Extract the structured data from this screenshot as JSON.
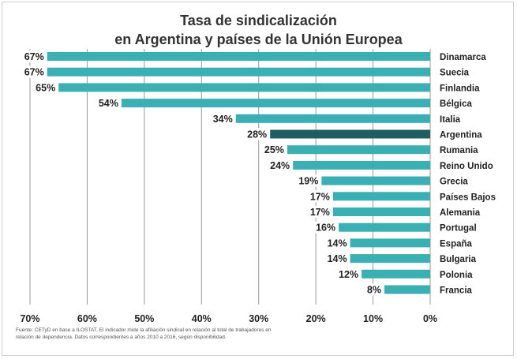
{
  "title_lines": [
    "Tasa de sindicalización",
    "en Argentina y países de la Unión Europea"
  ],
  "source_text": "Fuente: CETyD en base a ILOSTAT. El indicador mide la afiliación sindical en relación al total de trabajadores en relación de dependencia. Datos correspondientes a años 2010 a 2016, según disponibilidad.",
  "colors": {
    "bar": "#3AAFB4",
    "highlight": "#1E5E63",
    "grid": "#9a9a9a",
    "text": "#222222"
  },
  "chart_data": {
    "type": "bar",
    "orientation": "horizontal-reversed",
    "categories": [
      "Dinamarca",
      "Suecia",
      "Finlandia",
      "Bélgica",
      "Italia",
      "Argentina",
      "Rumania",
      "Reino Unido",
      "Grecia",
      "Países Bajos",
      "Alemania",
      "Portugal",
      "España",
      "Bulgaria",
      "Polonia",
      "Francia"
    ],
    "values": [
      67,
      67,
      65,
      54,
      34,
      28,
      25,
      24,
      19,
      17,
      17,
      16,
      14,
      14,
      12,
      8
    ],
    "value_labels": [
      "67%",
      "67%",
      "65%",
      "54%",
      "34%",
      "28%",
      "25%",
      "24%",
      "19%",
      "17%",
      "17%",
      "16%",
      "14%",
      "14%",
      "12%",
      "8%"
    ],
    "highlight": "Argentina",
    "xlim": [
      0,
      70
    ],
    "x_ticks": [
      70,
      60,
      50,
      40,
      30,
      20,
      10,
      0
    ],
    "x_tick_labels": [
      "70%",
      "60%",
      "50%",
      "40%",
      "30%",
      "20%",
      "10%",
      "0%"
    ],
    "grid": true
  }
}
